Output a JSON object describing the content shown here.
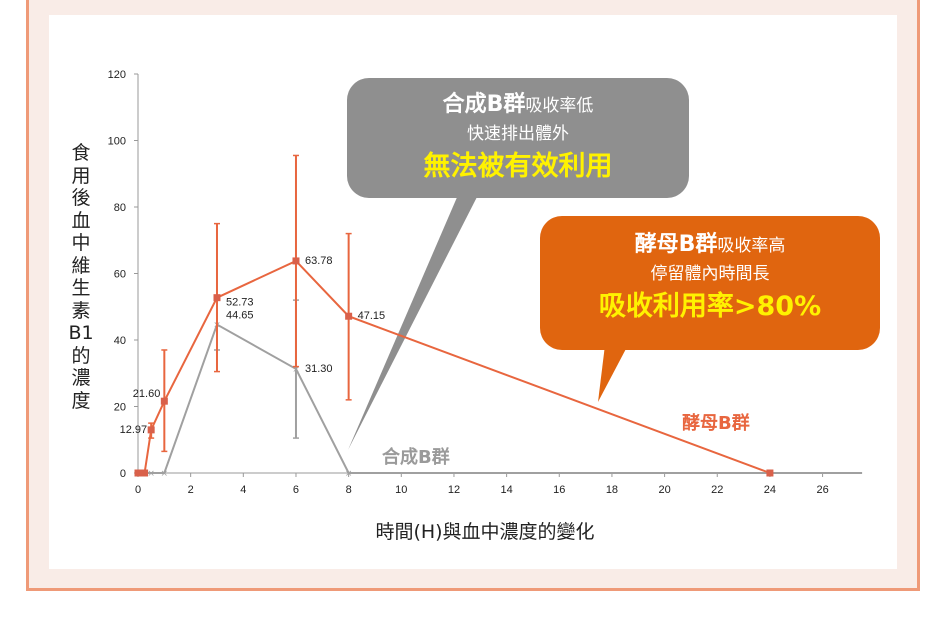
{
  "colors": {
    "synthetic": "#a0a0a0",
    "yeast": "#e8663f",
    "frame": "#ef9a78",
    "callout_gray": "#8f8f8f",
    "callout_orange": "#e0650f",
    "highlight": "#fff200"
  },
  "chart_data": {
    "type": "line",
    "xlabel": "時間(H)與血中濃度的變化",
    "ylabel": "食用後血中維生素B1的濃度",
    "xlim": [
      0,
      27.5
    ],
    "ylim": [
      0,
      120
    ],
    "xticks": [
      0,
      2,
      4,
      6,
      8,
      10,
      12,
      14,
      16,
      18,
      20,
      22,
      24,
      26
    ],
    "yticks": [
      0,
      20,
      40,
      60,
      80,
      100,
      120
    ],
    "grid": false,
    "series": [
      {
        "name": "酵母B群",
        "x": [
          0,
          0.25,
          0.5,
          1,
          3,
          6,
          8,
          24
        ],
        "y": [
          0,
          0,
          12.97,
          21.6,
          52.73,
          63.78,
          47.15,
          0
        ],
        "labels": [
          "",
          "",
          "12.97",
          "21.60",
          "52.73",
          "63.78",
          "47.15",
          ""
        ],
        "error_low": [
          null,
          null,
          10.5,
          6.5,
          30.5,
          32,
          22,
          null
        ],
        "error_high": [
          null,
          null,
          15,
          37,
          75,
          95.5,
          72,
          null
        ]
      },
      {
        "name": "合成B群",
        "x": [
          0,
          0.25,
          0.5,
          1,
          3,
          6,
          8,
          27.5
        ],
        "y": [
          0,
          0,
          0,
          0,
          44.65,
          31.3,
          0,
          0
        ],
        "labels": [
          "",
          "",
          "",
          "",
          "44.65",
          "31.30",
          "",
          ""
        ],
        "error_low": [
          null,
          null,
          null,
          null,
          37,
          10.5,
          null,
          null
        ],
        "error_high": [
          null,
          null,
          null,
          null,
          52,
          52,
          null,
          null
        ]
      }
    ]
  },
  "callouts": {
    "synthetic": {
      "title": "合成B群",
      "title_suffix": "吸收率低",
      "line2": "快速排出體外",
      "line3": "無法被有效利用"
    },
    "yeast": {
      "title": "酵母B群",
      "title_suffix": "吸收率高",
      "line2": "停留體內時間長",
      "line3": "吸收利用率>80%"
    }
  },
  "series_labels": {
    "synthetic": "合成B群",
    "yeast": "酵母B群"
  }
}
